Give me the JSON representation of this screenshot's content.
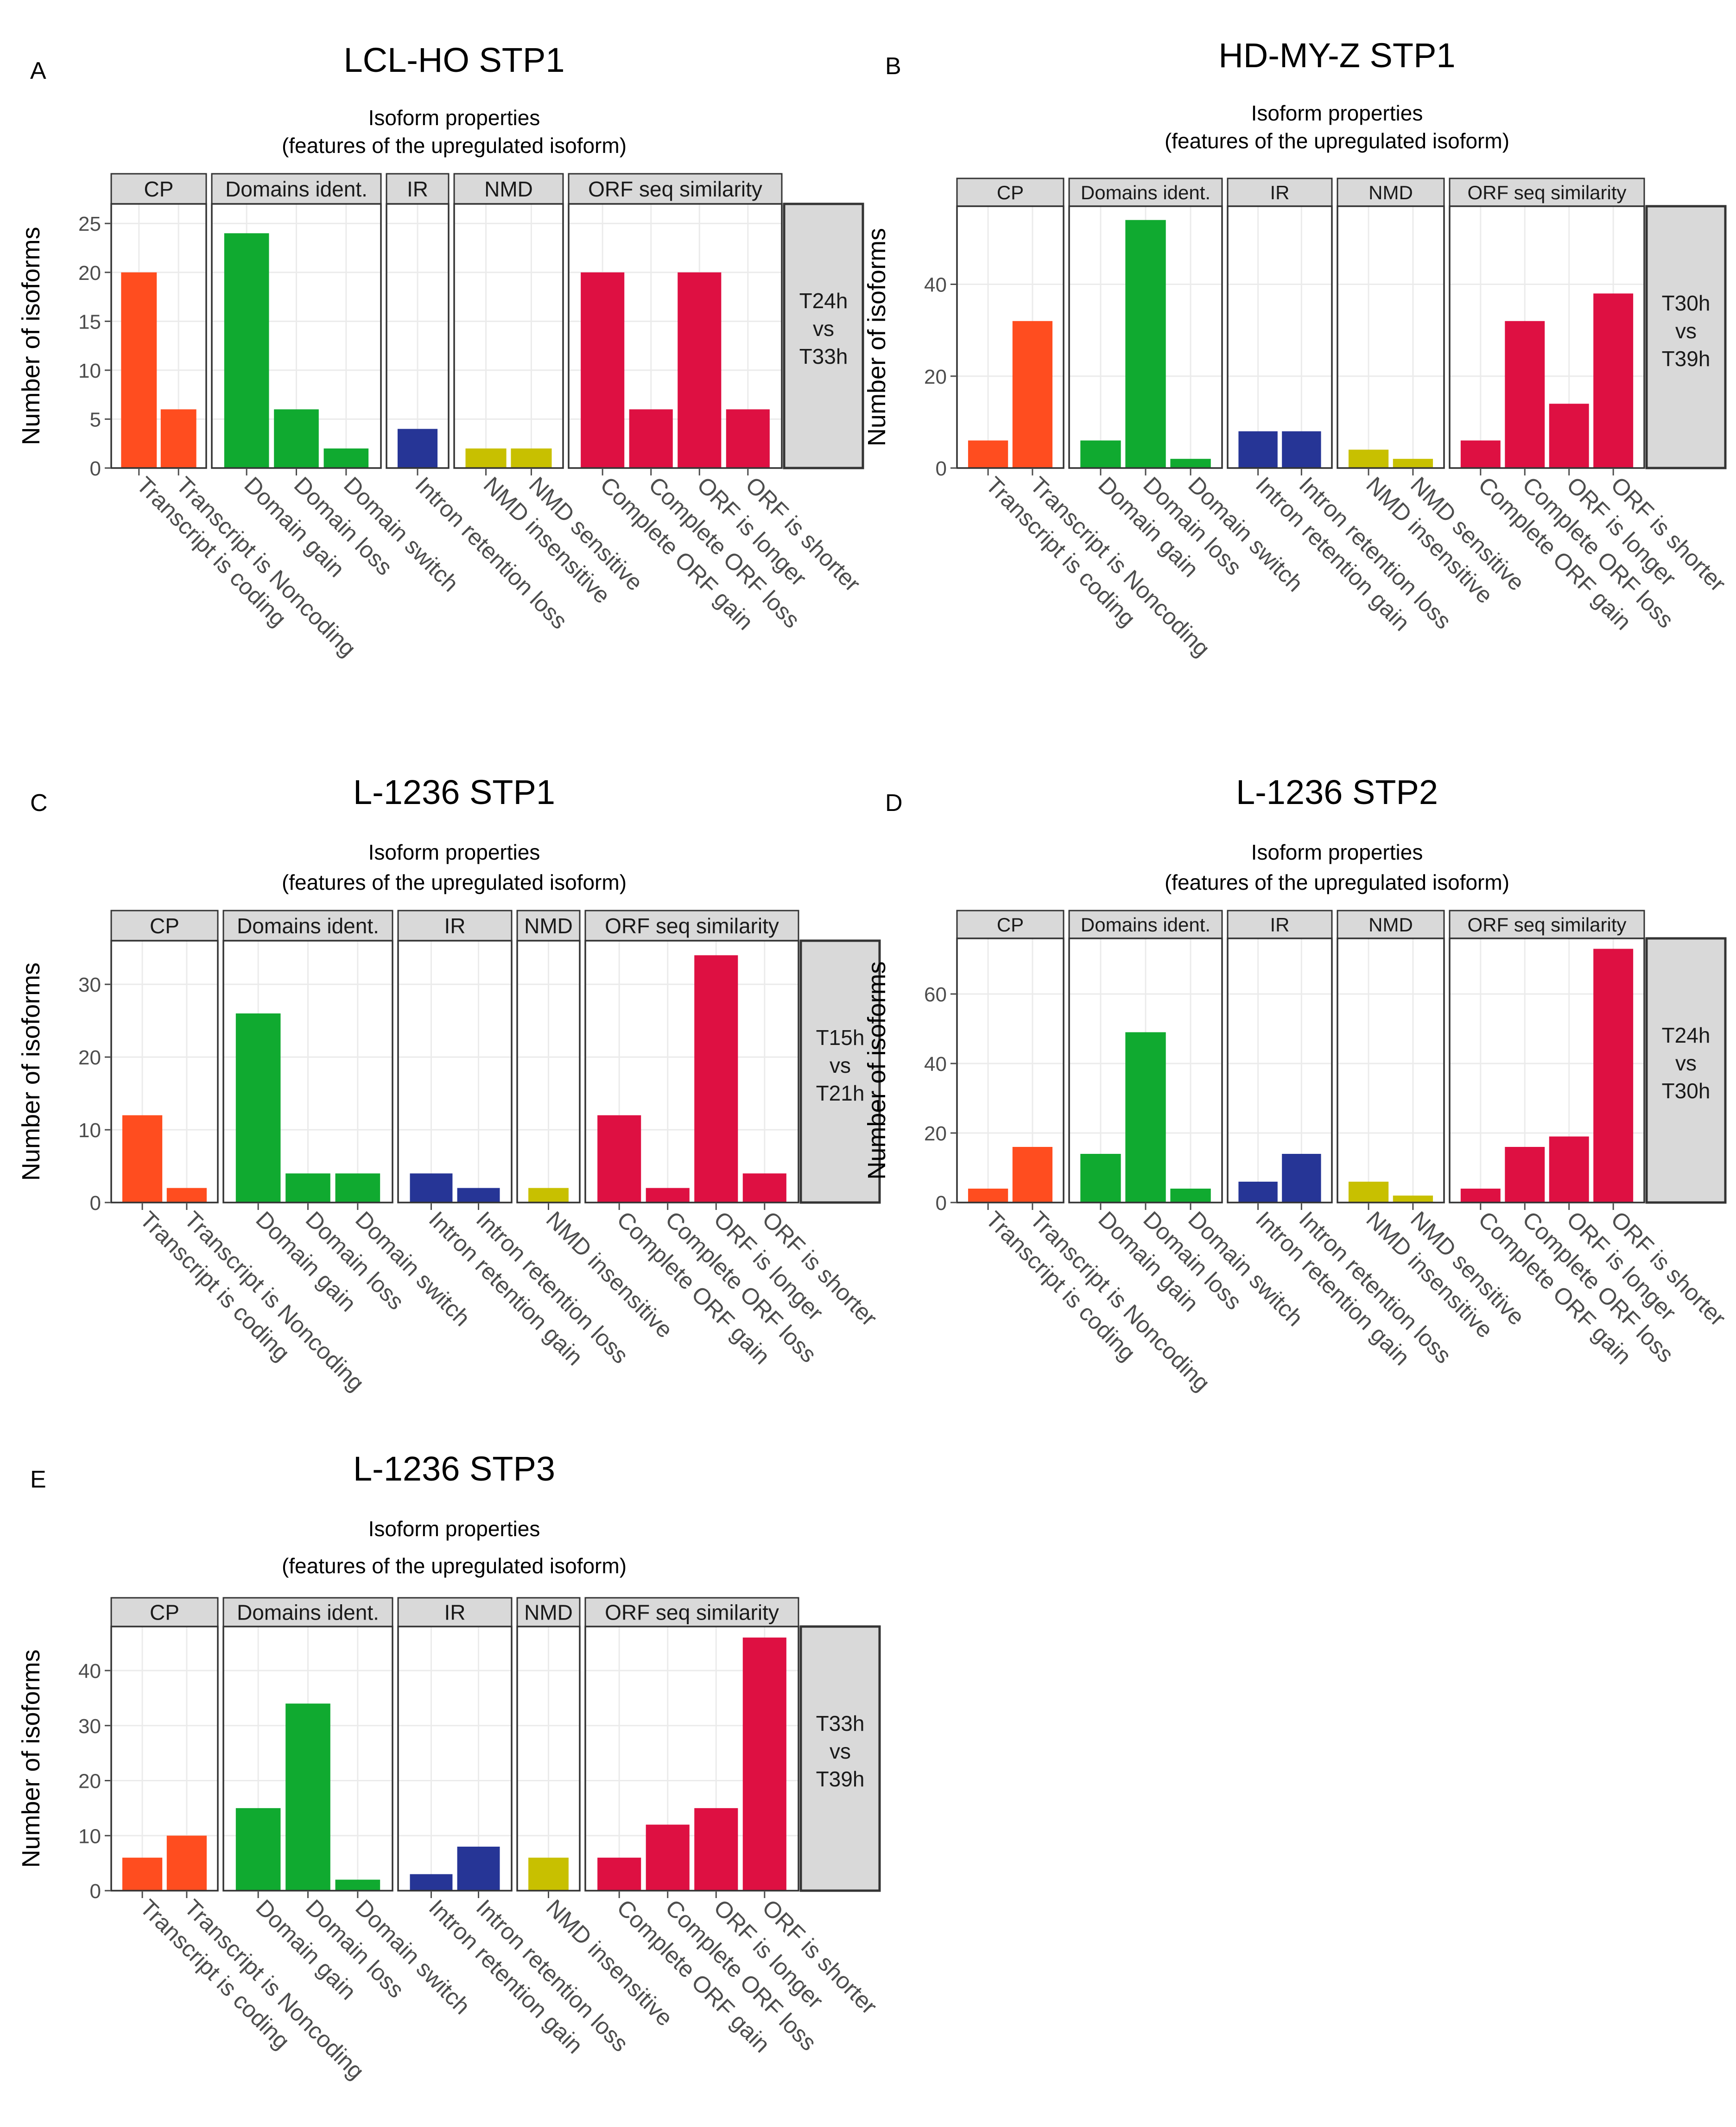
{
  "colors": {
    "cp": "#ff4d1f",
    "domains": "#10aa30",
    "ir": "#263596",
    "nmd": "#c8c000",
    "orf": "#de1042",
    "strip": "#d9d9d9",
    "grid": "#ebebeb",
    "frame": "#333333",
    "axis_text": "#4d4d4d"
  },
  "chart_data": [
    {
      "id": "A",
      "type": "bar",
      "panel_label": "A",
      "title": "LCL-HO STP1",
      "subtitle_line1": "Isoform properties",
      "subtitle_line2": "(features of the upregulated isoform)",
      "ylabel": "Number of isoforms",
      "ylim": [
        0,
        27
      ],
      "yticks": [
        0,
        5,
        10,
        15,
        20,
        25
      ],
      "comparison": [
        "T24h",
        "vs",
        "T33h"
      ],
      "facets": [
        {
          "label": "CP",
          "color_key": "cp",
          "categories": [
            "Transcript is coding",
            "Transcript is Noncoding"
          ],
          "values": [
            20,
            6
          ]
        },
        {
          "label": "Domains ident.",
          "color_key": "domains",
          "categories": [
            "Domain gain",
            "Domain loss",
            "Domain switch"
          ],
          "values": [
            24,
            6,
            2
          ]
        },
        {
          "label": "IR",
          "color_key": "ir",
          "categories": [
            "Intron retention loss"
          ],
          "values": [
            4
          ]
        },
        {
          "label": "NMD",
          "color_key": "nmd",
          "categories": [
            "NMD insensitive",
            "NMD sensitive"
          ],
          "values": [
            2,
            2
          ]
        },
        {
          "label": "ORF seq similarity",
          "color_key": "orf",
          "categories": [
            "Complete ORF gain",
            "Complete ORF loss",
            "ORF is longer",
            "ORF is shorter"
          ],
          "values": [
            20,
            6,
            20,
            6
          ]
        }
      ]
    },
    {
      "id": "B",
      "type": "bar",
      "panel_label": "B",
      "title": "HD-MY-Z STP1",
      "subtitle_line1": "Isoform properties",
      "subtitle_line2": "(features of the upregulated isoform)",
      "ylabel": "Number of isoforms",
      "ylim": [
        0,
        57
      ],
      "yticks": [
        0,
        20,
        40
      ],
      "comparison": [
        "T30h",
        "vs",
        "T39h"
      ],
      "facets": [
        {
          "label": "CP",
          "color_key": "cp",
          "categories": [
            "Transcript is coding",
            "Transcript is Noncoding"
          ],
          "values": [
            6,
            32
          ]
        },
        {
          "label": "Domains ident.",
          "color_key": "domains",
          "categories": [
            "Domain gain",
            "Domain loss",
            "Domain switch"
          ],
          "values": [
            6,
            54,
            2
          ]
        },
        {
          "label": "IR",
          "color_key": "ir",
          "categories": [
            "Intron retention gain",
            "Intron retention loss"
          ],
          "values": [
            8,
            8
          ]
        },
        {
          "label": "NMD",
          "color_key": "nmd",
          "categories": [
            "NMD insensitive",
            "NMD sensitive"
          ],
          "values": [
            4,
            2
          ]
        },
        {
          "label": "ORF seq similarity",
          "color_key": "orf",
          "categories": [
            "Complete ORF gain",
            "Complete ORF loss",
            "ORF is longer",
            "ORF is shorter"
          ],
          "values": [
            6,
            32,
            14,
            38
          ]
        }
      ]
    },
    {
      "id": "C",
      "type": "bar",
      "panel_label": "C",
      "title": "L-1236 STP1",
      "subtitle_line1": "Isoform properties",
      "subtitle_line2": "(features of the upregulated isoform)",
      "ylabel": "Number of isoforms",
      "ylim": [
        0,
        36
      ],
      "yticks": [
        0,
        10,
        20,
        30
      ],
      "comparison": [
        "T15h",
        "vs",
        "T21h"
      ],
      "facets": [
        {
          "label": "CP",
          "color_key": "cp",
          "categories": [
            "Transcript is coding",
            "Transcript is Noncoding"
          ],
          "values": [
            12,
            2
          ]
        },
        {
          "label": "Domains ident.",
          "color_key": "domains",
          "categories": [
            "Domain gain",
            "Domain loss",
            "Domain switch"
          ],
          "values": [
            26,
            4,
            4
          ]
        },
        {
          "label": "IR",
          "color_key": "ir",
          "categories": [
            "Intron retention gain",
            "Intron retention loss"
          ],
          "values": [
            4,
            2
          ]
        },
        {
          "label": "NMD",
          "color_key": "nmd",
          "categories": [
            "NMD insensitive"
          ],
          "values": [
            2
          ]
        },
        {
          "label": "ORF seq similarity",
          "color_key": "orf",
          "categories": [
            "Complete ORF gain",
            "Complete ORF loss",
            "ORF is longer",
            "ORF is shorter"
          ],
          "values": [
            12,
            2,
            34,
            4
          ]
        }
      ]
    },
    {
      "id": "D",
      "type": "bar",
      "panel_label": "D",
      "title": "L-1236 STP2",
      "subtitle_line1": "Isoform properties",
      "subtitle_line2": "(features of the upregulated isoform)",
      "ylabel": "Number of isoforms",
      "ylim": [
        0,
        76
      ],
      "yticks": [
        0,
        20,
        40,
        60
      ],
      "comparison": [
        "T24h",
        "vs",
        "T30h"
      ],
      "facets": [
        {
          "label": "CP",
          "color_key": "cp",
          "categories": [
            "Transcript is coding",
            "Transcript is Noncoding"
          ],
          "values": [
            4,
            16
          ]
        },
        {
          "label": "Domains ident.",
          "color_key": "domains",
          "categories": [
            "Domain gain",
            "Domain loss",
            "Domain switch"
          ],
          "values": [
            14,
            49,
            4
          ]
        },
        {
          "label": "IR",
          "color_key": "ir",
          "categories": [
            "Intron retention gain",
            "Intron retention loss"
          ],
          "values": [
            6,
            14
          ]
        },
        {
          "label": "NMD",
          "color_key": "nmd",
          "categories": [
            "NMD insensitive",
            "NMD sensitive"
          ],
          "values": [
            6,
            2
          ]
        },
        {
          "label": "ORF seq similarity",
          "color_key": "orf",
          "categories": [
            "Complete ORF gain",
            "Complete ORF loss",
            "ORF is longer",
            "ORF is shorter"
          ],
          "values": [
            4,
            16,
            19,
            73
          ]
        }
      ]
    },
    {
      "id": "E",
      "type": "bar",
      "panel_label": "E",
      "title": "L-1236 STP3",
      "subtitle_line1": "Isoform properties",
      "subtitle_line2": "(features of the upregulated isoform)",
      "ylabel": "Number of isoforms",
      "ylim": [
        0,
        48
      ],
      "yticks": [
        0,
        10,
        20,
        30,
        40
      ],
      "comparison": [
        "T33h",
        "vs",
        "T39h"
      ],
      "facets": [
        {
          "label": "CP",
          "color_key": "cp",
          "categories": [
            "Transcript is coding",
            "Transcript is Noncoding"
          ],
          "values": [
            6,
            10
          ]
        },
        {
          "label": "Domains ident.",
          "color_key": "domains",
          "categories": [
            "Domain gain",
            "Domain loss",
            "Domain switch"
          ],
          "values": [
            15,
            34,
            2
          ]
        },
        {
          "label": "IR",
          "color_key": "ir",
          "categories": [
            "Intron retention gain",
            "Intron retention loss"
          ],
          "values": [
            3,
            8
          ]
        },
        {
          "label": "NMD",
          "color_key": "nmd",
          "categories": [
            "NMD insensitive"
          ],
          "values": [
            6
          ]
        },
        {
          "label": "ORF seq similarity",
          "color_key": "orf",
          "categories": [
            "Complete ORF gain",
            "Complete ORF loss",
            "ORF is longer",
            "ORF is shorter"
          ],
          "values": [
            6,
            12,
            15,
            46
          ]
        }
      ]
    }
  ]
}
